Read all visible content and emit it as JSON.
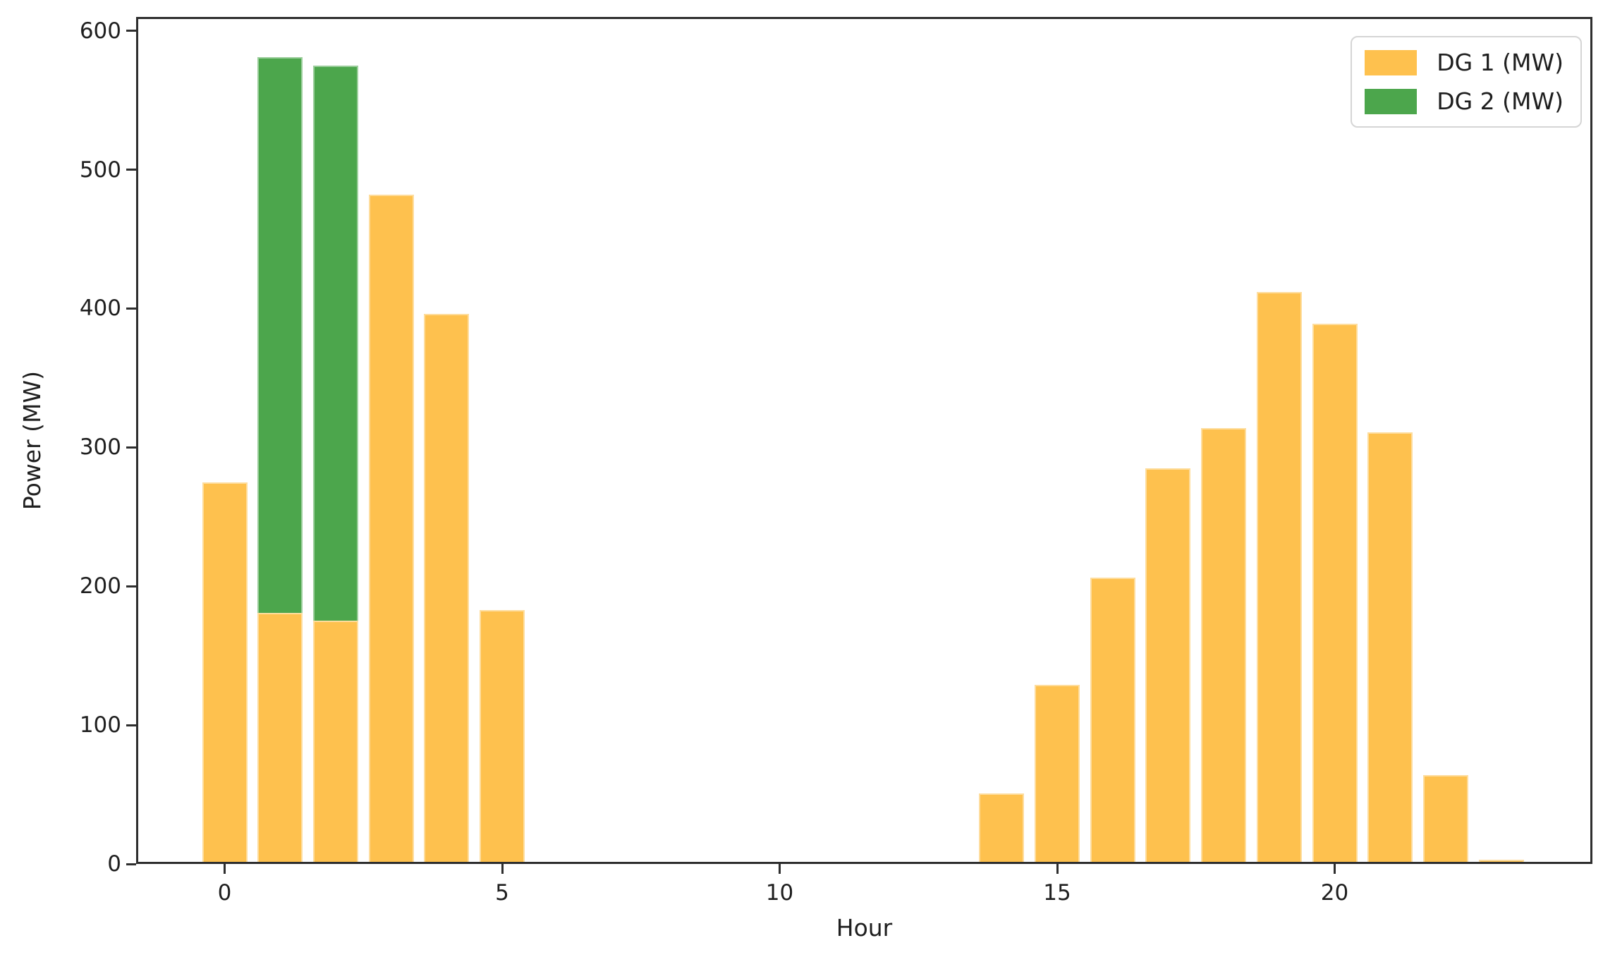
{
  "figure": {
    "background": "#ffffff",
    "xlabel": "Hour",
    "ylabel": "Power (MW)"
  },
  "legend": {
    "position": "upper right",
    "items": [
      {
        "label": "DG 1 (MW)",
        "color": "#FEC14E"
      },
      {
        "label": "DG 2 (MW)",
        "color": "#4CA64C"
      }
    ]
  },
  "chart_data": {
    "type": "bar",
    "stacked": true,
    "title": "",
    "xlabel": "Hour",
    "ylabel": "Power (MW)",
    "categories": [
      0,
      1,
      2,
      3,
      4,
      5,
      6,
      7,
      8,
      9,
      10,
      11,
      12,
      13,
      14,
      15,
      16,
      17,
      18,
      19,
      20,
      21,
      22,
      23
    ],
    "series": [
      {
        "name": "DG 1 (MW)",
        "color": "#FEC14E",
        "values": [
          275,
          181,
          175,
          482,
          396,
          183,
          0,
          0,
          0,
          0,
          0,
          0,
          0,
          0,
          51,
          129,
          206,
          285,
          314,
          412,
          389,
          311,
          64,
          3
        ]
      },
      {
        "name": "DG 2 (MW)",
        "color": "#4CA64C",
        "values": [
          0,
          400,
          400,
          0,
          0,
          0,
          0,
          0,
          0,
          0,
          0,
          0,
          0,
          0,
          0,
          0,
          0,
          0,
          0,
          0,
          0,
          0,
          0,
          0
        ]
      }
    ],
    "ylim": [
      0,
      600
    ],
    "yticks": [
      0,
      100,
      200,
      300,
      400,
      500,
      600
    ],
    "xticks": [
      0,
      5,
      10,
      15,
      20
    ],
    "grid": false,
    "legend_position": "upper right"
  }
}
